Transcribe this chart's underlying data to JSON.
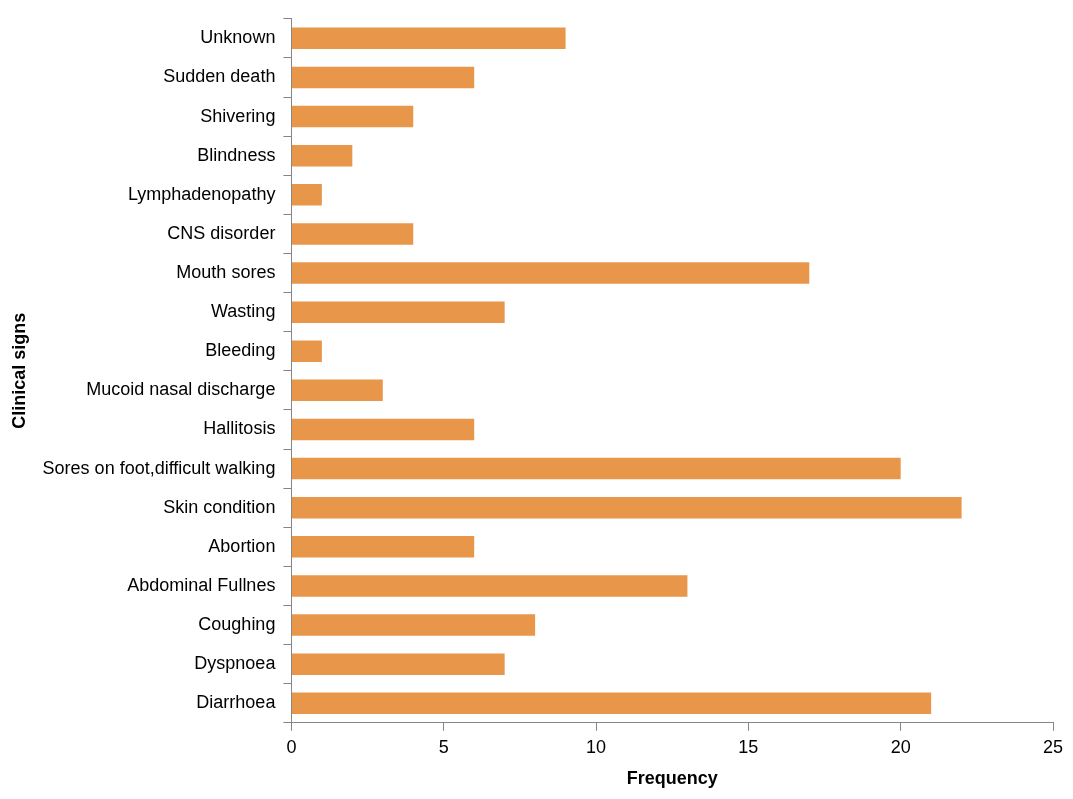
{
  "chart_data": {
    "type": "bar",
    "orientation": "horizontal",
    "categories": [
      "Unknown",
      "Sudden death",
      "Shivering",
      "Blindness",
      "Lymphadenopathy",
      "CNS disorder",
      "Mouth sores",
      "Wasting",
      "Bleeding",
      "Mucoid nasal discharge",
      "Hallitosis",
      "Sores on foot,difficult walking",
      "Skin condition",
      "Abortion",
      "Abdominal Fullnes",
      "Coughing",
      "Dyspnoea",
      "Diarrhoea"
    ],
    "values": [
      9,
      6,
      4,
      2,
      1,
      4,
      17,
      7,
      1,
      3,
      6,
      20,
      22,
      6,
      13,
      8,
      7,
      21
    ],
    "color": "#e8964a",
    "xlim": [
      0,
      25
    ],
    "xticks": [
      0,
      5,
      10,
      15,
      20,
      25
    ],
    "xlabel": "Frequency",
    "ylabel": "Clinical signs",
    "grid": false
  }
}
